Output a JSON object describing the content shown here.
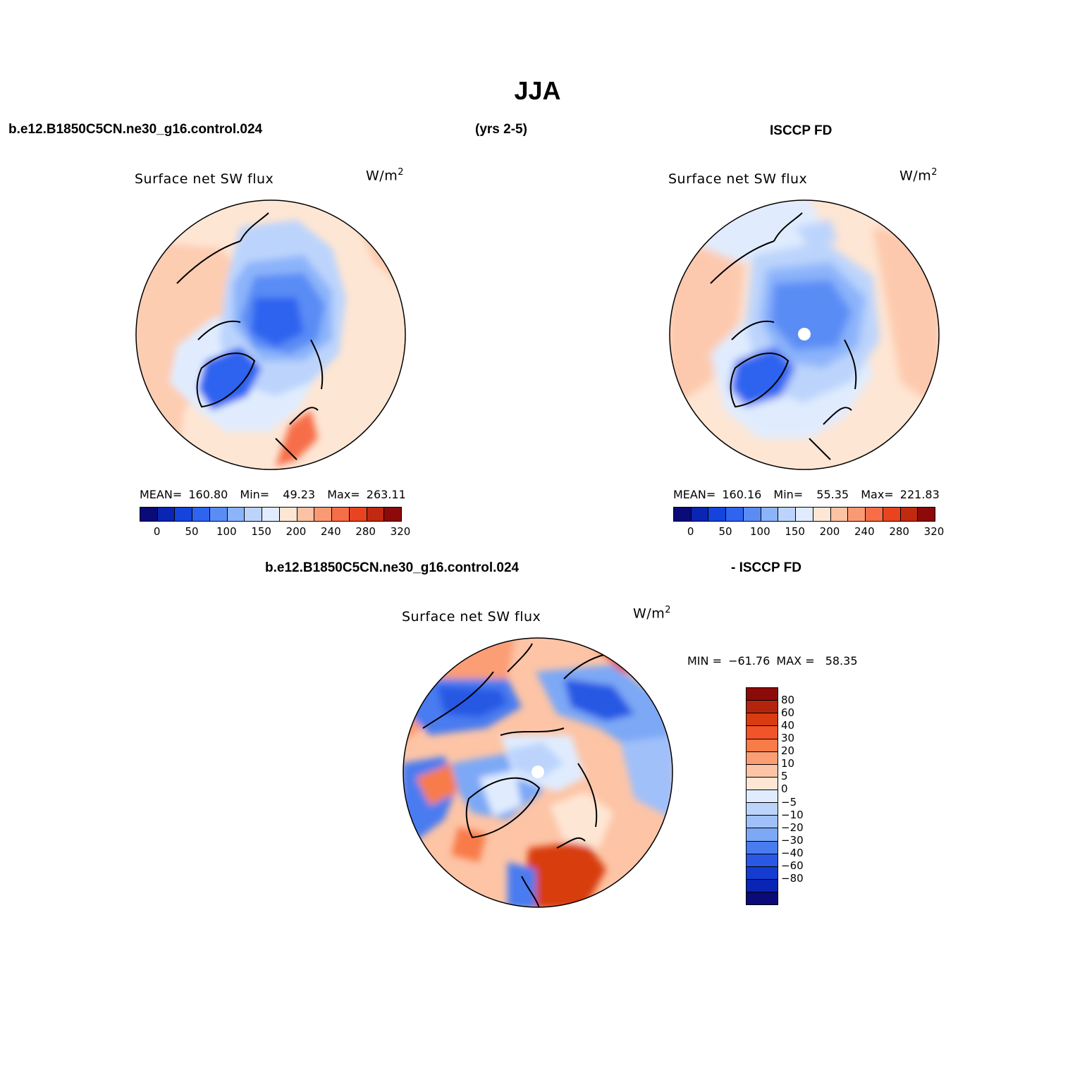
{
  "page": {
    "title": "JJA",
    "case_name": "b.e12.B1850C5CN.ne30_g16.control.024",
    "years": "(yrs 2-5)",
    "obs_name": "ISCCP FD",
    "diff_case_name": "b.e12.B1850C5CN.ne30_g16.control.024",
    "diff_obs_name": "- ISCCP FD"
  },
  "panels": {
    "model": {
      "variable": "Surface net SW flux",
      "units_base": "W/m",
      "units_exp": "2",
      "stats": {
        "mean_label": "MEAN=",
        "mean": "160.80",
        "min_label": "Min=",
        "min": "49.23",
        "max_label": "Max=",
        "max": "263.11"
      }
    },
    "obs": {
      "variable": "Surface net SW flux",
      "units_base": "W/m",
      "units_exp": "2",
      "stats": {
        "mean_label": "MEAN=",
        "mean": "160.16",
        "min_label": "Min=",
        "min": "55.35",
        "max_label": "Max=",
        "max": "221.83"
      }
    },
    "diff": {
      "variable": "Surface net SW flux",
      "units_base": "W/m",
      "units_exp": "2",
      "stats": {
        "min_label": "MIN =",
        "min": "−61.76",
        "max_label": "MAX =",
        "max": "58.35"
      }
    }
  },
  "colorbars": {
    "absolute": {
      "colors": [
        "#0a0a78",
        "#0a24b4",
        "#1444dc",
        "#2e64f0",
        "#5a8cf5",
        "#8cb4fa",
        "#bcd4fc",
        "#e0ecfe",
        "#fee6d4",
        "#fcc2a4",
        "#fa9a74",
        "#f66e48",
        "#e84420",
        "#c02a10",
        "#8c0a0a"
      ],
      "labels": [
        "0",
        "50",
        "100",
        "150",
        "200",
        "240",
        "280",
        "320"
      ]
    },
    "difference": {
      "colors": [
        "#8c0a0a",
        "#b4240c",
        "#d83c10",
        "#f05428",
        "#f87c48",
        "#fb9e74",
        "#fdc4a6",
        "#fee6d4",
        "#e0ecfe",
        "#bcd4fc",
        "#a0c0fa",
        "#7ca8f6",
        "#4a7cf0",
        "#2858e4",
        "#143cd0",
        "#0a24b4",
        "#0a0a78"
      ],
      "labels": [
        "80",
        "60",
        "40",
        "30",
        "20",
        "10",
        "5",
        "0",
        "−5",
        "−10",
        "−20",
        "−30",
        "−40",
        "−60",
        "−80"
      ]
    }
  }
}
